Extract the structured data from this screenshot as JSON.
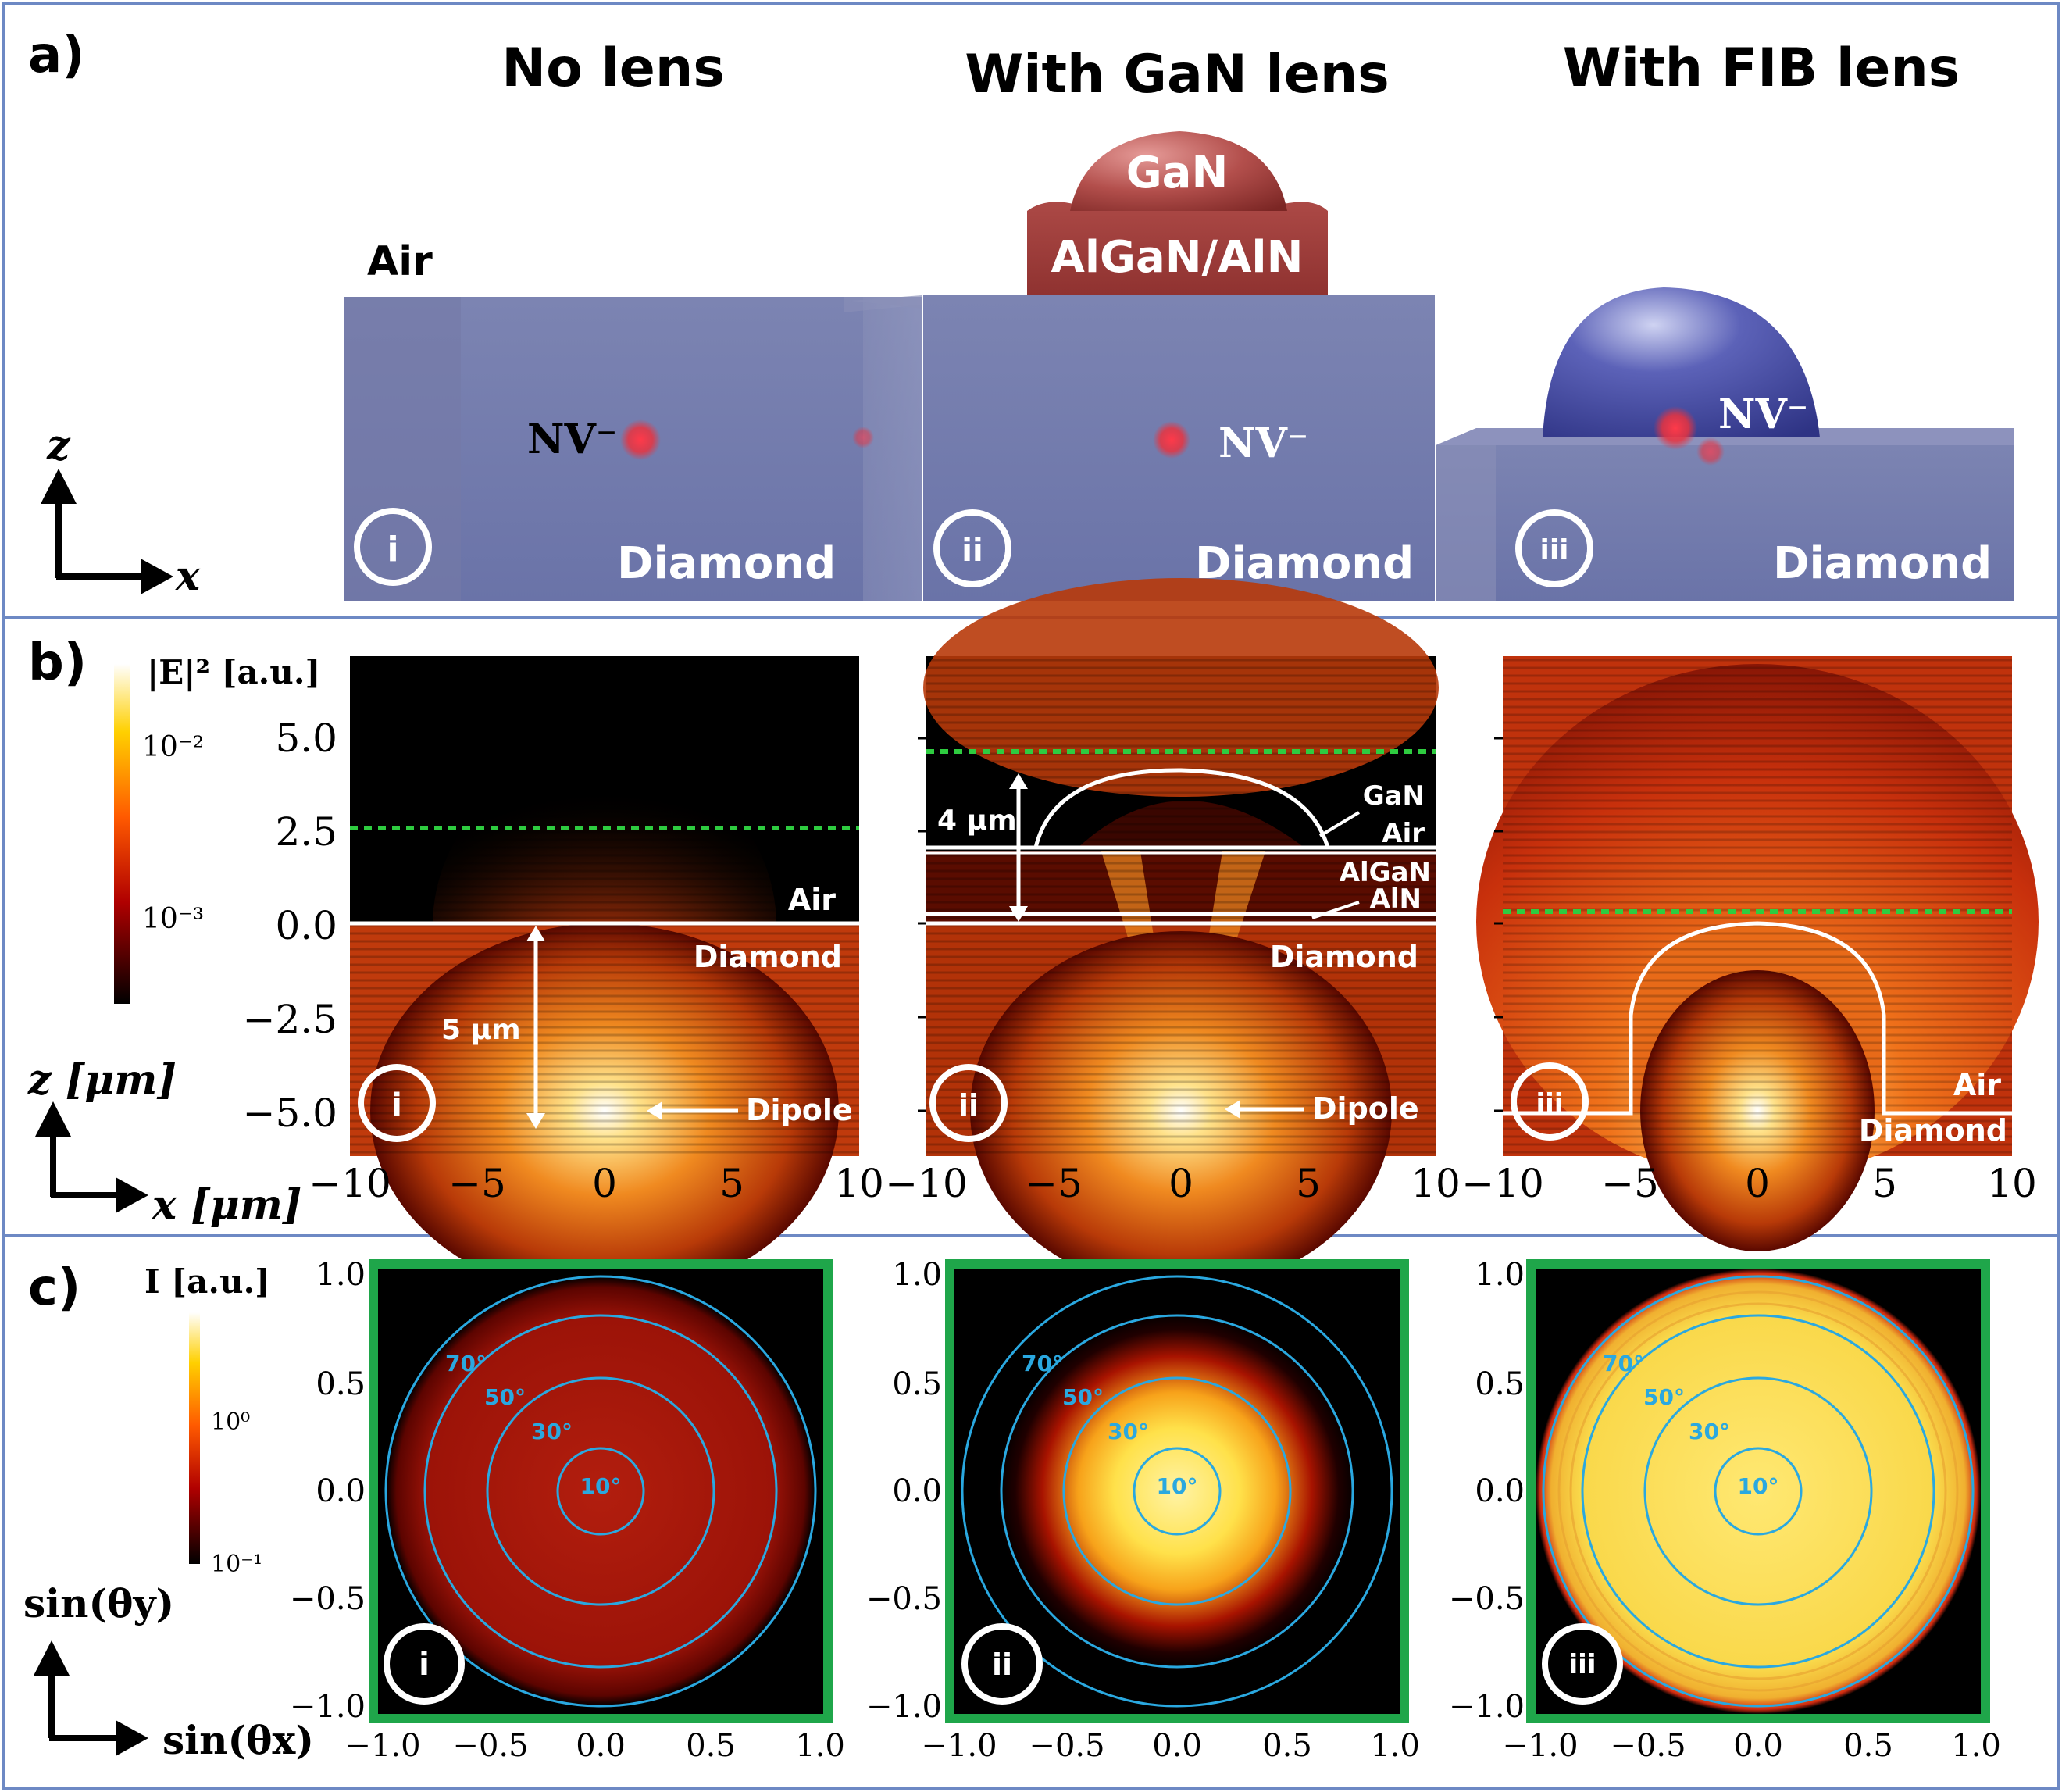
{
  "panel_letters": [
    "a)",
    "b)",
    "c)"
  ],
  "panel_a": {
    "titles": [
      "No lens",
      "With GaN lens",
      "With FIB lens"
    ],
    "air_label": "Air",
    "gan_label": "GaN",
    "algan_label": "AlGaN/AlN",
    "diamond_label": "Diamond",
    "nv_label": "NV⁻",
    "axis_z": "z",
    "axis_x": "x",
    "roman": [
      "i",
      "ii",
      "iii"
    ]
  },
  "panel_b": {
    "colorbar_title": "|E|² [a.u.]",
    "colorbar_ticks": [
      "10⁻²",
      "10⁻³"
    ],
    "y_ticks": [
      "5.0",
      "2.5",
      "0.0",
      "−2.5",
      "−5.0"
    ],
    "x_ticks": [
      "−10",
      "−5",
      "0",
      "5",
      "10"
    ],
    "axis_z_label": "z [μm]",
    "axis_x_label": "x [μm]",
    "plot1": {
      "air": "Air",
      "diamond": "Diamond",
      "distance": "5 μm",
      "dipole": "Dipole"
    },
    "plot2": {
      "gan": "GaN",
      "air": "Air",
      "algan": "AlGaN",
      "aln": "AlN",
      "diamond": "Diamond",
      "height": "4 μm",
      "dipole": "Dipole"
    },
    "plot3": {
      "air": "Air",
      "diamond": "Diamond"
    }
  },
  "panel_c": {
    "colorbar_title": "I [a.u.]",
    "colorbar_ticks": [
      "10⁰",
      "10⁻¹"
    ],
    "y_ticks": [
      "1.0",
      "0.5",
      "0.0",
      "−0.5",
      "−1.0"
    ],
    "x_ticks": [
      "−1.0",
      "−0.5",
      "0.0",
      "0.5",
      "1.0"
    ],
    "angle_labels": [
      "70°",
      "50°",
      "30°",
      "10°"
    ],
    "axis_y_label": "sin(θy)",
    "axis_x_label": "sin(θx)"
  },
  "colors": {
    "frame": "#6d89c4",
    "diamond": "#6b74a6",
    "nv": "#e8333f",
    "gan": "#a8403f",
    "angle_circle": "#2aa8e0",
    "green_frame": "#1fa64a",
    "dashed_green": "#2ecc40"
  }
}
